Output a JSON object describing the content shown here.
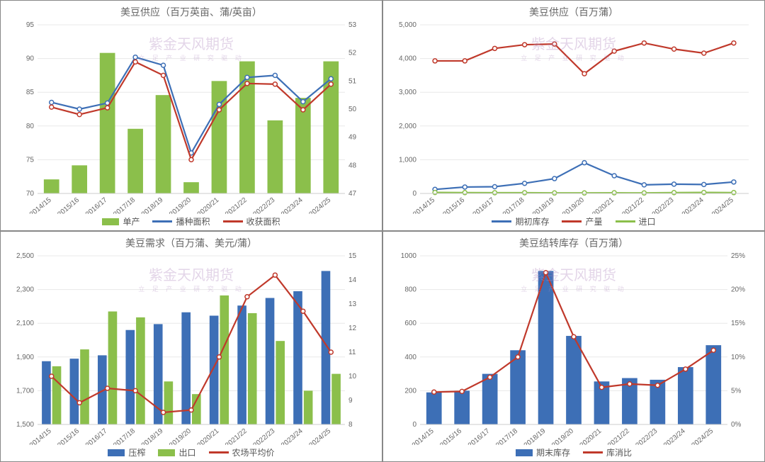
{
  "watermark": {
    "main": "紫金天风期货",
    "sub": "立 足 产 业  研 究 驱 动"
  },
  "categories": [
    "2014/15",
    "2015/16",
    "2016/17",
    "2017/18",
    "2018/19",
    "2019/20",
    "2020/21",
    "2021/22",
    "2022/23",
    "2023/24",
    "2024/25"
  ],
  "colors": {
    "green": "#8bbf4b",
    "blue": "#3d6fb6",
    "red": "#c0392b",
    "grid": "#e8e8e8",
    "axis": "#cccccc",
    "text": "#666666"
  },
  "panels": [
    {
      "id": "tl",
      "title": "美豆供应（百万英亩、蒲/英亩）",
      "yLeft": {
        "min": 70,
        "max": 95,
        "step": 5
      },
      "yRight": {
        "min": 47,
        "max": 53,
        "step": 1
      },
      "bars": [
        {
          "key": "单产",
          "color": "#8bbf4b",
          "axis": "right",
          "values": [
            47.5,
            48.0,
            52.0,
            49.3,
            50.5,
            47.4,
            51.0,
            51.7,
            49.6,
            50.4,
            51.7
          ]
        }
      ],
      "lines": [
        {
          "key": "播种面积",
          "color": "#3d6fb6",
          "axis": "left",
          "values": [
            83.5,
            82.5,
            83.4,
            90.2,
            89.0,
            76.0,
            83.2,
            87.2,
            87.5,
            83.6,
            87.0
          ]
        },
        {
          "key": "收获面积",
          "color": "#c0392b",
          "axis": "left",
          "values": [
            82.8,
            81.7,
            82.7,
            89.5,
            87.5,
            75.0,
            82.4,
            86.3,
            86.2,
            82.4,
            86.2
          ]
        }
      ],
      "legend": [
        {
          "type": "bar",
          "color": "#8bbf4b",
          "label": "单产"
        },
        {
          "type": "line",
          "color": "#3d6fb6",
          "label": "播种面积"
        },
        {
          "type": "line",
          "color": "#c0392b",
          "label": "收获面积"
        }
      ]
    },
    {
      "id": "tr",
      "title": "美豆供应（百万蒲）",
      "yLeft": {
        "min": 0,
        "max": 5000,
        "step": 1000,
        "fmt": "comma"
      },
      "lines": [
        {
          "key": "期初库存",
          "color": "#3d6fb6",
          "axis": "left",
          "values": [
            120,
            190,
            200,
            300,
            440,
            910,
            525,
            255,
            275,
            265,
            340
          ]
        },
        {
          "key": "产量",
          "color": "#c0392b",
          "axis": "left",
          "values": [
            3930,
            3930,
            4300,
            4410,
            4430,
            3550,
            4220,
            4460,
            4280,
            4160,
            4460
          ]
        },
        {
          "key": "进口",
          "color": "#8bbf4b",
          "axis": "left",
          "values": [
            30,
            25,
            22,
            22,
            15,
            15,
            20,
            15,
            25,
            30,
            25
          ]
        }
      ],
      "legend": [
        {
          "type": "line",
          "color": "#3d6fb6",
          "label": "期初库存"
        },
        {
          "type": "line",
          "color": "#c0392b",
          "label": "产量"
        },
        {
          "type": "line",
          "color": "#8bbf4b",
          "label": "进口"
        }
      ]
    },
    {
      "id": "bl",
      "title": "美豆需求（百万蒲、美元/蒲）",
      "yLeft": {
        "min": 1500,
        "max": 2500,
        "step": 200,
        "fmt": "comma"
      },
      "yRight": {
        "min": 8,
        "max": 15,
        "step": 1
      },
      "barsGrouped": [
        {
          "key": "压榨",
          "color": "#3d6fb6",
          "axis": "left",
          "values": [
            1875,
            1890,
            1910,
            2060,
            2095,
            2165,
            2145,
            2205,
            2250,
            2290,
            2410
          ]
        },
        {
          "key": "出口",
          "color": "#8bbf4b",
          "axis": "left",
          "values": [
            1845,
            1945,
            2170,
            2135,
            1755,
            1680,
            2265,
            2160,
            1995,
            1700,
            1800
          ]
        }
      ],
      "lines": [
        {
          "key": "农场平均价",
          "color": "#c0392b",
          "axis": "right",
          "values": [
            10.0,
            8.9,
            9.5,
            9.4,
            8.5,
            8.6,
            10.8,
            13.3,
            14.2,
            12.7,
            11.0
          ]
        }
      ],
      "legend": [
        {
          "type": "bar",
          "color": "#3d6fb6",
          "label": "压榨"
        },
        {
          "type": "bar",
          "color": "#8bbf4b",
          "label": "出口"
        },
        {
          "type": "line",
          "color": "#c0392b",
          "label": "农场平均价"
        }
      ]
    },
    {
      "id": "br",
      "title": "美豆结转库存（百万蒲）",
      "yLeft": {
        "min": 0,
        "max": 1000,
        "step": 200
      },
      "yRight": {
        "min": 0,
        "max": 25,
        "step": 5,
        "suffix": "%"
      },
      "bars": [
        {
          "key": "期末库存",
          "color": "#3d6fb6",
          "axis": "left",
          "values": [
            190,
            200,
            300,
            440,
            910,
            525,
            255,
            275,
            265,
            340,
            470
          ]
        }
      ],
      "lines": [
        {
          "key": "库消比",
          "color": "#c0392b",
          "axis": "right",
          "values": [
            4.8,
            4.9,
            7.0,
            10.0,
            22.5,
            13.0,
            5.5,
            6.0,
            5.8,
            8.2,
            11.0
          ]
        }
      ],
      "legend": [
        {
          "type": "bar",
          "color": "#3d6fb6",
          "label": "期末库存"
        },
        {
          "type": "line",
          "color": "#c0392b",
          "label": "库消比"
        }
      ]
    }
  ]
}
